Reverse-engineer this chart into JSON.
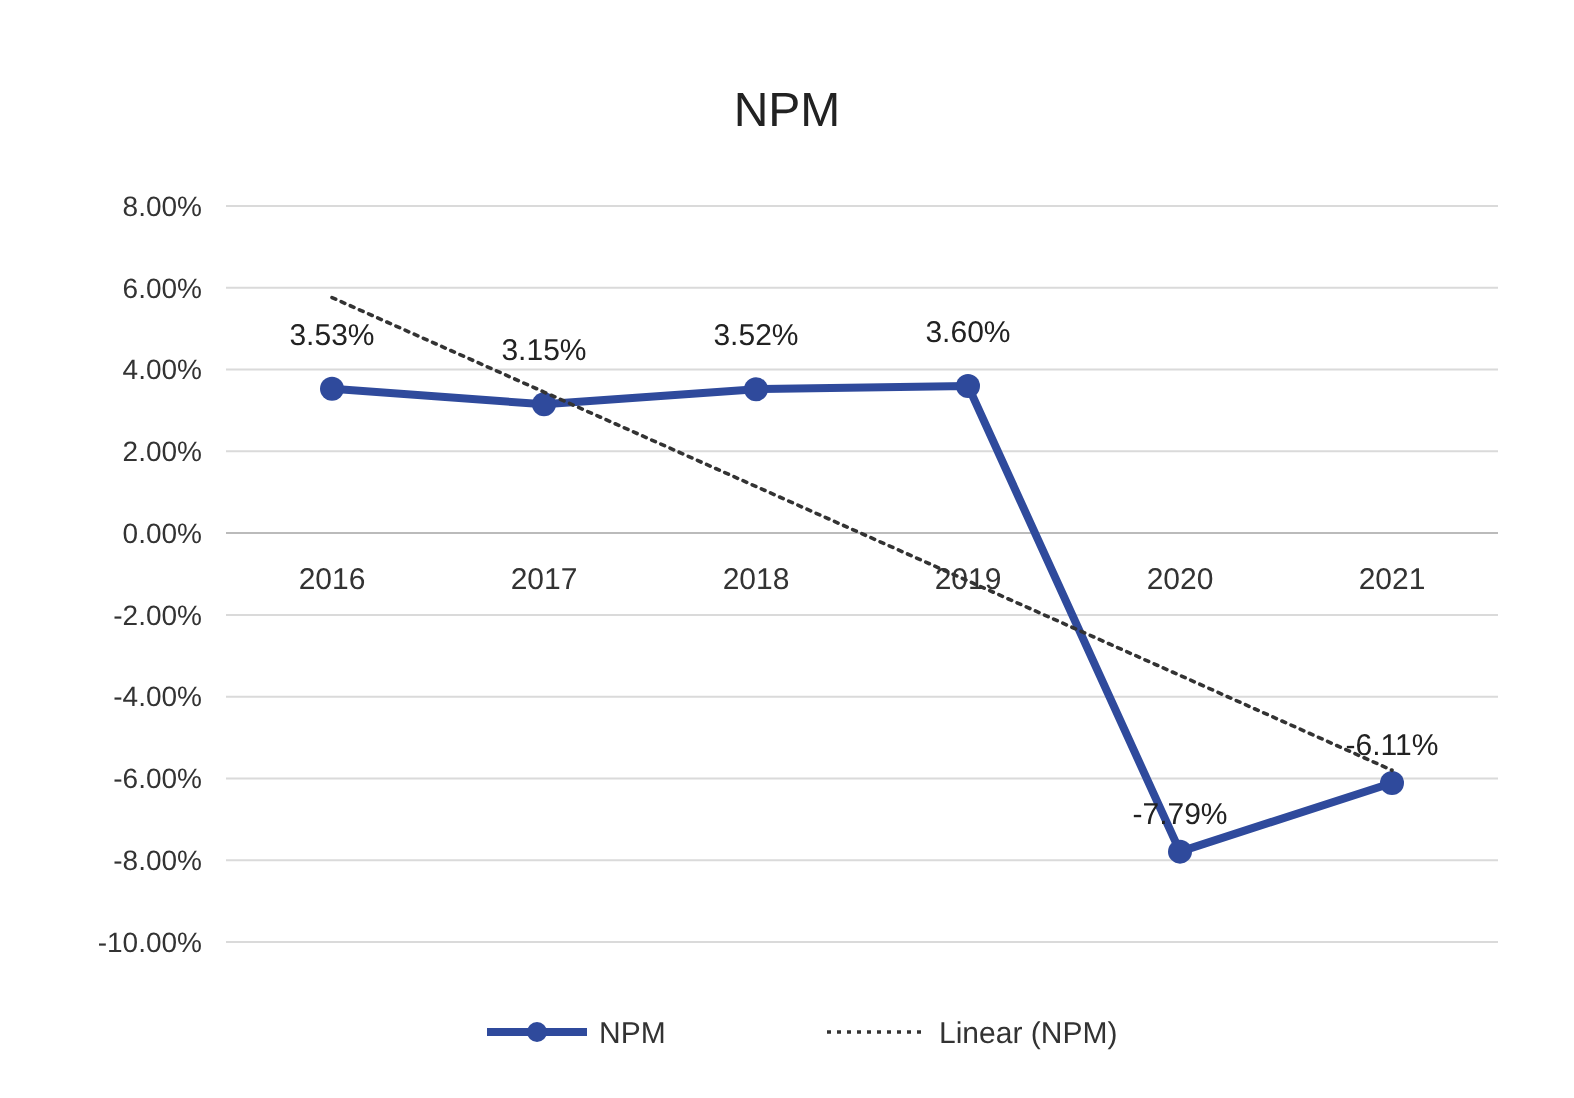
{
  "chart_data": {
    "type": "line",
    "title": "NPM",
    "categories": [
      "2016",
      "2017",
      "2018",
      "2019",
      "2020",
      "2021"
    ],
    "series": [
      {
        "name": "NPM",
        "color": "#2f4a9c",
        "values": [
          3.53,
          3.15,
          3.52,
          3.6,
          -7.79,
          -6.11
        ],
        "value_labels": [
          "3.53%",
          "3.15%",
          "3.52%",
          "3.60%",
          "-7.79%",
          "-6.11%"
        ],
        "marker": "circle",
        "line_style": "solid"
      },
      {
        "name": "Linear (NPM)",
        "type": "line",
        "color": "#333333",
        "values": [
          5.76,
          3.45,
          1.14,
          -1.17,
          -3.48,
          -5.8
        ],
        "marker": "none",
        "line_style": "dotted"
      }
    ],
    "ylim": [
      -10,
      8
    ],
    "yticks": [
      {
        "value": 8,
        "label": "8.00%"
      },
      {
        "value": 6,
        "label": "6.00%"
      },
      {
        "value": 4,
        "label": "4.00%"
      },
      {
        "value": 2,
        "label": "2.00%"
      },
      {
        "value": 0,
        "label": "0.00%"
      },
      {
        "value": -2,
        "label": "-2.00%"
      },
      {
        "value": -4,
        "label": "-4.00%"
      },
      {
        "value": -6,
        "label": "-6.00%"
      },
      {
        "value": -8,
        "label": "-8.00%"
      },
      {
        "value": -10,
        "label": "-10.00%"
      }
    ],
    "grid": "y",
    "legend": "bottom"
  }
}
